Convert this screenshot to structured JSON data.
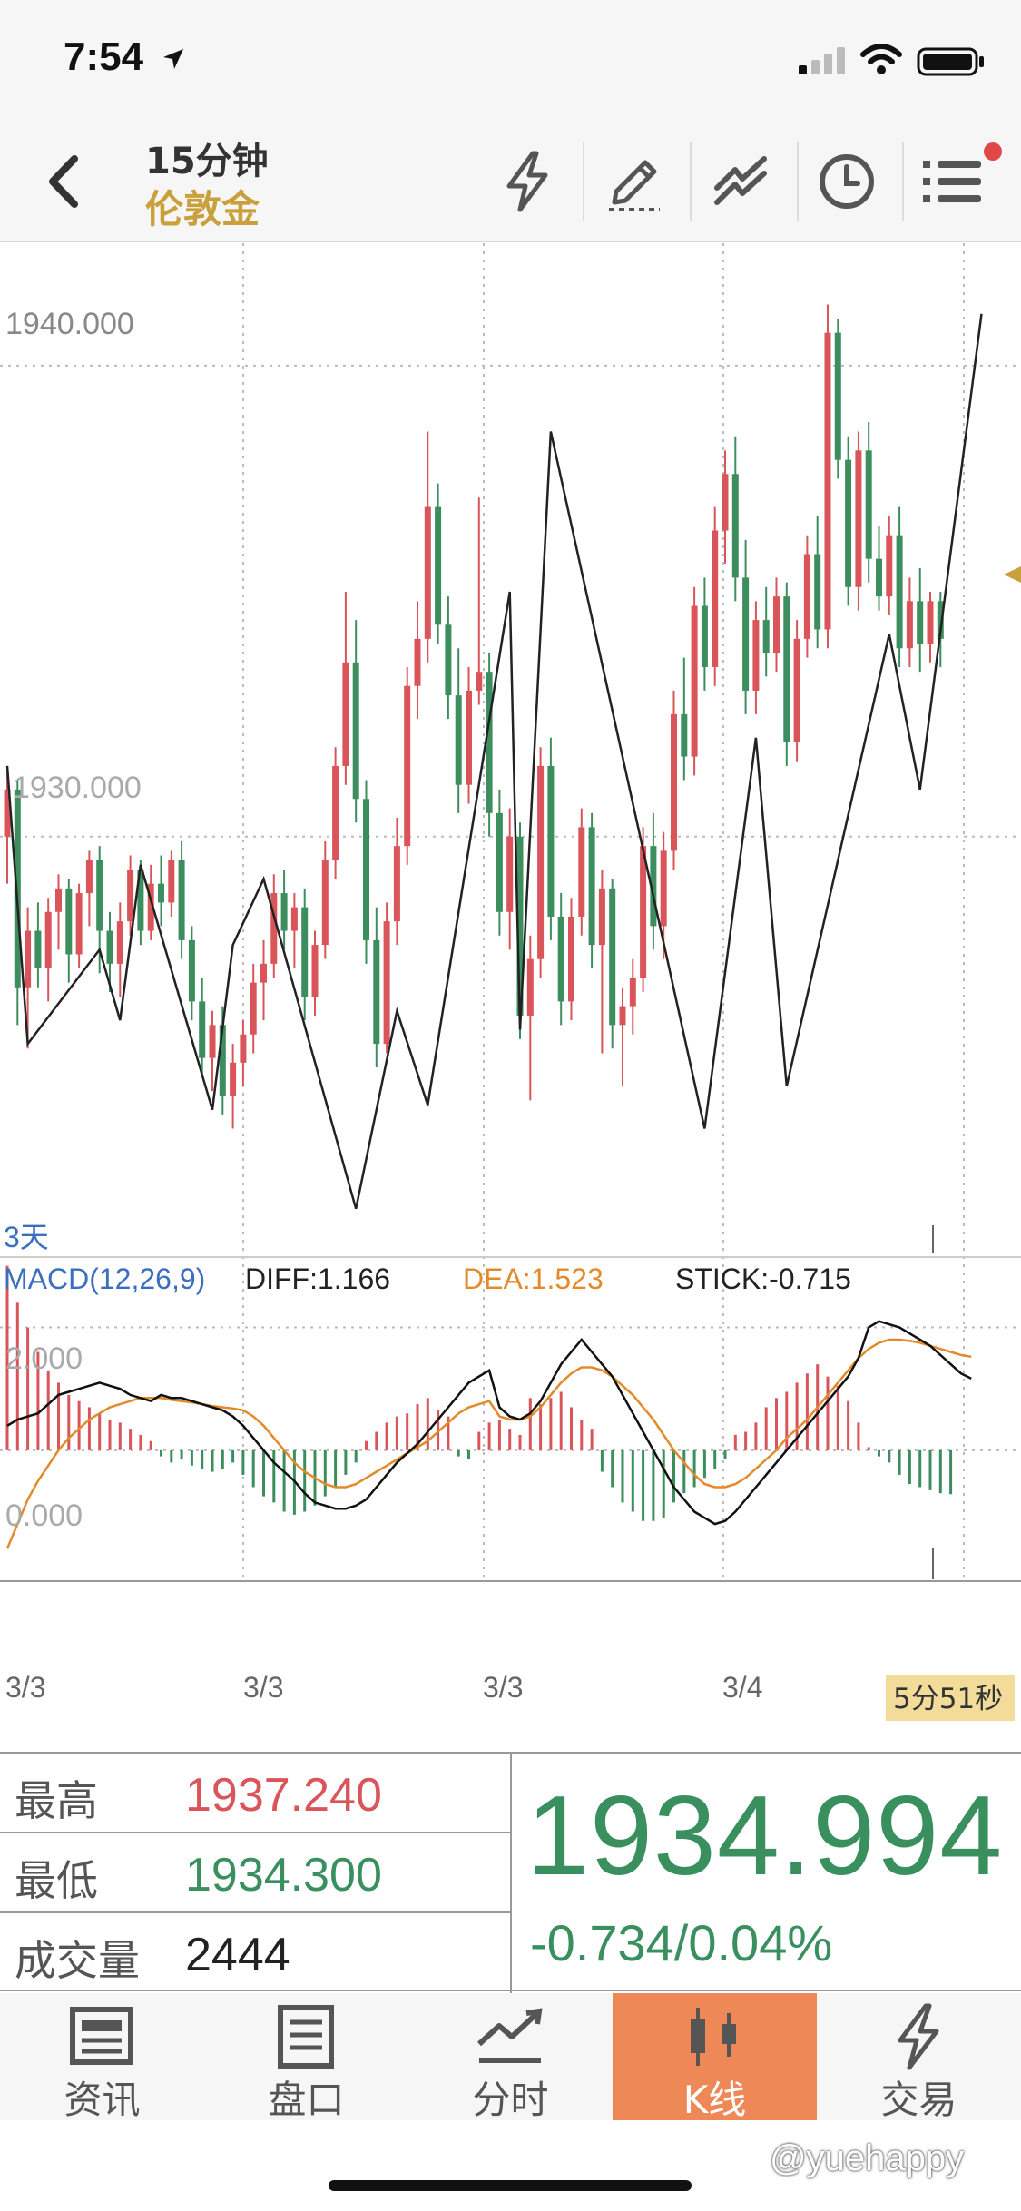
{
  "status_bar": {
    "time": "7:54"
  },
  "header": {
    "title": "15分钟",
    "subtitle": "伦敦金"
  },
  "toolbar_icons": [
    "lightning-icon",
    "draw-icon",
    "trendline-icon",
    "clock-icon",
    "menu-icon"
  ],
  "colors": {
    "up": "#d9555a",
    "down": "#3d8e5e",
    "accent": "#c9a03b",
    "dea": "#e38a2a",
    "active_tab": "#ee8856"
  },
  "chart_data": [
    {
      "type": "candlestick",
      "y_ticks": [
        "1940.000",
        "1930.000"
      ],
      "ylim": [
        1921.4,
        1942.6
      ],
      "period_label": "3天",
      "x_tick_labels": [
        "3/3",
        "3/3",
        "3/3",
        "3/4"
      ],
      "countdown": "5分51秒",
      "zigzag": [
        [
          0,
          1931.5
        ],
        [
          2,
          1925.6
        ],
        [
          9,
          1927.6
        ],
        [
          11,
          1926.1
        ],
        [
          13,
          1929.4
        ],
        [
          20,
          1924.2
        ],
        [
          22,
          1927.7
        ],
        [
          25,
          1929.1
        ],
        [
          34,
          1922.1
        ],
        [
          38,
          1926.3
        ],
        [
          41,
          1924.3
        ],
        [
          49,
          1935.2
        ],
        [
          50,
          1925.9
        ],
        [
          53,
          1938.6
        ],
        [
          68,
          1923.8
        ],
        [
          73,
          1932.1
        ],
        [
          76,
          1924.7
        ],
        [
          86,
          1934.3
        ],
        [
          89,
          1931.0
        ],
        [
          95,
          1941.1
        ]
      ],
      "candles": [
        [
          1930,
          1931.5,
          1929,
          1931
        ],
        [
          1931,
          1931.2,
          1926,
          1926.8
        ],
        [
          1926.8,
          1928.5,
          1925.5,
          1928
        ],
        [
          1928,
          1928.6,
          1926.8,
          1927.2
        ],
        [
          1927.2,
          1928.7,
          1926.5,
          1928.4
        ],
        [
          1928.4,
          1929.2,
          1927.6,
          1928.9
        ],
        [
          1928.9,
          1929.1,
          1926.9,
          1927.5
        ],
        [
          1927.5,
          1929.0,
          1927.2,
          1928.8
        ],
        [
          1928.8,
          1929.7,
          1928.1,
          1929.5
        ],
        [
          1929.5,
          1929.8,
          1927.1,
          1928.0
        ],
        [
          1928.0,
          1928.4,
          1926.7,
          1927.3
        ],
        [
          1927.3,
          1928.6,
          1926.6,
          1928.2
        ],
        [
          1928.2,
          1929.6,
          1927.9,
          1929.3
        ],
        [
          1929.3,
          1929.5,
          1927.7,
          1928.0
        ],
        [
          1928.0,
          1929.4,
          1927.8,
          1929.0
        ],
        [
          1929.0,
          1929.6,
          1928.1,
          1928.6
        ],
        [
          1928.6,
          1929.7,
          1928.3,
          1929.5
        ],
        [
          1929.5,
          1929.9,
          1927.4,
          1927.8
        ],
        [
          1927.8,
          1928.1,
          1926.1,
          1926.5
        ],
        [
          1926.5,
          1927.0,
          1924.9,
          1925.3
        ],
        [
          1925.3,
          1926.3,
          1924.6,
          1926.0
        ],
        [
          1926.0,
          1926.4,
          1924.1,
          1924.5
        ],
        [
          1924.5,
          1925.6,
          1923.8,
          1925.2
        ],
        [
          1925.2,
          1926.1,
          1924.7,
          1925.8
        ],
        [
          1925.8,
          1927.3,
          1925.4,
          1926.9
        ],
        [
          1926.9,
          1927.8,
          1926.1,
          1927.3
        ],
        [
          1927.3,
          1929.2,
          1927.0,
          1928.8
        ],
        [
          1928.8,
          1929.3,
          1927.6,
          1928.0
        ],
        [
          1928.0,
          1928.8,
          1927.2,
          1928.5
        ],
        [
          1928.5,
          1928.9,
          1926.1,
          1926.6
        ],
        [
          1926.6,
          1928.0,
          1926.2,
          1927.7
        ],
        [
          1927.7,
          1929.9,
          1927.4,
          1929.5
        ],
        [
          1929.5,
          1931.9,
          1929.1,
          1931.5
        ],
        [
          1931.5,
          1935.2,
          1931.1,
          1933.7
        ],
        [
          1933.7,
          1934.6,
          1930.3,
          1930.8
        ],
        [
          1930.8,
          1931.2,
          1927.3,
          1927.8
        ],
        [
          1927.8,
          1928.5,
          1925.1,
          1925.6
        ],
        [
          1925.6,
          1928.6,
          1925.4,
          1928.2
        ],
        [
          1928.2,
          1930.4,
          1927.7,
          1929.8
        ],
        [
          1929.8,
          1933.6,
          1929.4,
          1933.2
        ],
        [
          1933.2,
          1935.0,
          1932.5,
          1934.2
        ],
        [
          1934.2,
          1938.6,
          1933.7,
          1937.0
        ],
        [
          1937.0,
          1937.5,
          1934.1,
          1934.5
        ],
        [
          1934.5,
          1935.1,
          1932.5,
          1933.0
        ],
        [
          1933.0,
          1934.0,
          1930.5,
          1931.1
        ],
        [
          1931.1,
          1933.6,
          1930.7,
          1933.1
        ],
        [
          1933.1,
          1937.2,
          1932.8,
          1933.5
        ],
        [
          1933.5,
          1933.9,
          1930.0,
          1930.5
        ],
        [
          1930.5,
          1931.0,
          1927.9,
          1928.4
        ],
        [
          1928.4,
          1930.6,
          1927.6,
          1930.0
        ],
        [
          1930.0,
          1930.3,
          1925.7,
          1926.2
        ],
        [
          1926.2,
          1927.9,
          1924.4,
          1927.4
        ],
        [
          1927.4,
          1931.9,
          1927.0,
          1931.5
        ],
        [
          1931.5,
          1932.1,
          1927.8,
          1928.3
        ],
        [
          1928.3,
          1928.8,
          1926.0,
          1926.5
        ],
        [
          1926.5,
          1928.7,
          1926.1,
          1928.3
        ],
        [
          1928.3,
          1930.6,
          1927.9,
          1930.2
        ],
        [
          1930.2,
          1930.5,
          1927.2,
          1927.7
        ],
        [
          1927.7,
          1929.3,
          1925.4,
          1928.9
        ],
        [
          1928.9,
          1929.1,
          1925.5,
          1926.0
        ],
        [
          1926.0,
          1926.8,
          1924.7,
          1926.4
        ],
        [
          1926.4,
          1927.4,
          1925.8,
          1927.0
        ],
        [
          1927.0,
          1930.2,
          1926.7,
          1929.8
        ],
        [
          1929.8,
          1930.5,
          1927.6,
          1928.1
        ],
        [
          1928.1,
          1930.1,
          1927.4,
          1929.7
        ],
        [
          1929.7,
          1933.1,
          1929.3,
          1932.6
        ],
        [
          1932.6,
          1933.8,
          1931.2,
          1931.7
        ],
        [
          1931.7,
          1935.3,
          1931.3,
          1934.9
        ],
        [
          1934.9,
          1935.5,
          1933.1,
          1933.6
        ],
        [
          1933.6,
          1937.0,
          1933.2,
          1936.5
        ],
        [
          1936.5,
          1938.2,
          1935.8,
          1937.7
        ],
        [
          1937.7,
          1938.5,
          1935.0,
          1935.5
        ],
        [
          1935.5,
          1936.3,
          1932.6,
          1933.1
        ],
        [
          1933.1,
          1935.0,
          1932.6,
          1934.6
        ],
        [
          1934.6,
          1935.3,
          1933.4,
          1933.9
        ],
        [
          1933.9,
          1935.5,
          1933.5,
          1935.1
        ],
        [
          1935.1,
          1935.4,
          1931.5,
          1932.0
        ],
        [
          1932.0,
          1934.6,
          1931.6,
          1934.2
        ],
        [
          1934.2,
          1936.4,
          1933.8,
          1936.0
        ],
        [
          1936.0,
          1936.8,
          1934.0,
          1934.4
        ],
        [
          1934.4,
          1941.3,
          1934.0,
          1940.7
        ],
        [
          1940.7,
          1941.0,
          1937.6,
          1938.0
        ],
        [
          1938.0,
          1938.5,
          1934.9,
          1935.3
        ],
        [
          1935.3,
          1938.6,
          1934.8,
          1938.2
        ],
        [
          1938.2,
          1938.8,
          1935.4,
          1935.9
        ],
        [
          1935.9,
          1936.6,
          1934.8,
          1935.1
        ],
        [
          1935.1,
          1936.8,
          1934.7,
          1936.4
        ],
        [
          1936.4,
          1937.0,
          1933.6,
          1934.0
        ],
        [
          1934.0,
          1935.5,
          1933.6,
          1935.0
        ],
        [
          1935.0,
          1935.7,
          1933.5,
          1934.1
        ],
        [
          1934.1,
          1935.2,
          1933.7,
          1935.0
        ],
        [
          1935.0,
          1935.2,
          1933.6,
          1934.2
        ]
      ]
    },
    {
      "type": "macd",
      "label": "MACD(12,26,9)",
      "diff_label": "DIFF:1.166",
      "dea_label": "DEA:1.523",
      "stick_label": "STICK:-0.715",
      "y_ticks": [
        "2.000",
        "0.000"
      ],
      "ylim": [
        -2.1,
        3.1
      ],
      "diff": [
        0.4,
        0.5,
        0.55,
        0.6,
        0.75,
        0.9,
        0.95,
        1.0,
        1.05,
        1.1,
        1.05,
        1.0,
        0.9,
        0.85,
        0.8,
        0.9,
        0.85,
        0.85,
        0.8,
        0.75,
        0.7,
        0.65,
        0.55,
        0.4,
        0.2,
        0.0,
        -0.2,
        -0.35,
        -0.5,
        -0.7,
        -0.85,
        -0.9,
        -0.95,
        -0.95,
        -0.9,
        -0.8,
        -0.6,
        -0.4,
        -0.2,
        -0.05,
        0.1,
        0.3,
        0.5,
        0.7,
        0.9,
        1.1,
        1.2,
        1.3,
        0.7,
        0.55,
        0.5,
        0.6,
        0.8,
        1.1,
        1.4,
        1.6,
        1.8,
        1.6,
        1.4,
        1.2,
        0.9,
        0.6,
        0.3,
        0.0,
        -0.3,
        -0.6,
        -0.8,
        -1.0,
        -1.1,
        -1.2,
        -1.15,
        -1.0,
        -0.8,
        -0.6,
        -0.4,
        -0.2,
        0.0,
        0.2,
        0.4,
        0.6,
        0.8,
        1.0,
        1.2,
        1.5,
        2.0,
        2.1,
        2.05,
        2.0,
        1.9,
        1.8,
        1.7,
        1.55,
        1.4,
        1.25,
        1.166
      ],
      "dea": [
        -1.6,
        -1.2,
        -0.8,
        -0.5,
        -0.25,
        0.0,
        0.2,
        0.35,
        0.5,
        0.6,
        0.7,
        0.75,
        0.8,
        0.85,
        0.85,
        0.85,
        0.82,
        0.8,
        0.78,
        0.75,
        0.72,
        0.7,
        0.68,
        0.65,
        0.55,
        0.4,
        0.2,
        0.0,
        -0.2,
        -0.35,
        -0.45,
        -0.55,
        -0.6,
        -0.6,
        -0.55,
        -0.45,
        -0.35,
        -0.25,
        -0.15,
        -0.05,
        0.05,
        0.15,
        0.3,
        0.45,
        0.6,
        0.7,
        0.75,
        0.8,
        0.55,
        0.5,
        0.5,
        0.55,
        0.7,
        0.9,
        1.1,
        1.25,
        1.35,
        1.35,
        1.3,
        1.2,
        1.05,
        0.9,
        0.7,
        0.5,
        0.25,
        0.0,
        -0.2,
        -0.4,
        -0.55,
        -0.6,
        -0.6,
        -0.55,
        -0.45,
        -0.3,
        -0.15,
        0.0,
        0.2,
        0.35,
        0.5,
        0.7,
        0.9,
        1.1,
        1.3,
        1.5,
        1.65,
        1.75,
        1.8,
        1.8,
        1.78,
        1.75,
        1.7,
        1.65,
        1.6,
        1.55,
        1.523
      ],
      "stick": [
        3.0,
        2.4,
        2.0,
        1.6,
        1.3,
        1.1,
        0.9,
        0.8,
        0.7,
        0.6,
        0.5,
        0.45,
        0.35,
        0.25,
        0.15,
        -0.1,
        -0.2,
        -0.15,
        -0.25,
        -0.3,
        -0.35,
        -0.3,
        -0.2,
        -0.4,
        -0.6,
        -0.75,
        -0.85,
        -1.0,
        -1.05,
        -1.0,
        -0.9,
        -0.75,
        -0.6,
        -0.4,
        -0.2,
        0.15,
        0.3,
        0.45,
        0.55,
        0.6,
        0.75,
        0.85,
        0.65,
        0.55,
        -0.1,
        -0.15,
        0.3,
        0.45,
        0.5,
        0.35,
        0.25,
        0.85,
        0.75,
        0.85,
        0.95,
        0.7,
        0.5,
        0.35,
        -0.35,
        -0.6,
        -0.85,
        -1.0,
        -1.15,
        -1.15,
        -1.1,
        -0.85,
        -0.7,
        -0.6,
        -0.45,
        -0.3,
        -0.15,
        0.25,
        0.3,
        0.45,
        0.7,
        0.85,
        0.95,
        1.1,
        1.25,
        1.4,
        1.2,
        1.05,
        0.8,
        0.45,
        0.05,
        -0.1,
        -0.2,
        -0.4,
        -0.55,
        -0.6,
        -0.65,
        -0.7,
        -0.715
      ]
    }
  ],
  "info": {
    "high_label": "最高",
    "high_value": "1937.240",
    "low_label": "最低",
    "low_value": "1934.300",
    "volume_label": "成交量",
    "volume_value": "2444",
    "price": "1934.994",
    "change": "-0.734/0.04%"
  },
  "nav": [
    {
      "label": "资讯",
      "icon": "news-icon",
      "active": false
    },
    {
      "label": "盘口",
      "icon": "orderbook-icon",
      "active": false
    },
    {
      "label": "分时",
      "icon": "timeshare-icon",
      "active": false
    },
    {
      "label": "K线",
      "icon": "candlestick-icon",
      "active": true
    },
    {
      "label": "交易",
      "icon": "trade-icon",
      "active": false
    }
  ],
  "watermark": "@yuehappy"
}
